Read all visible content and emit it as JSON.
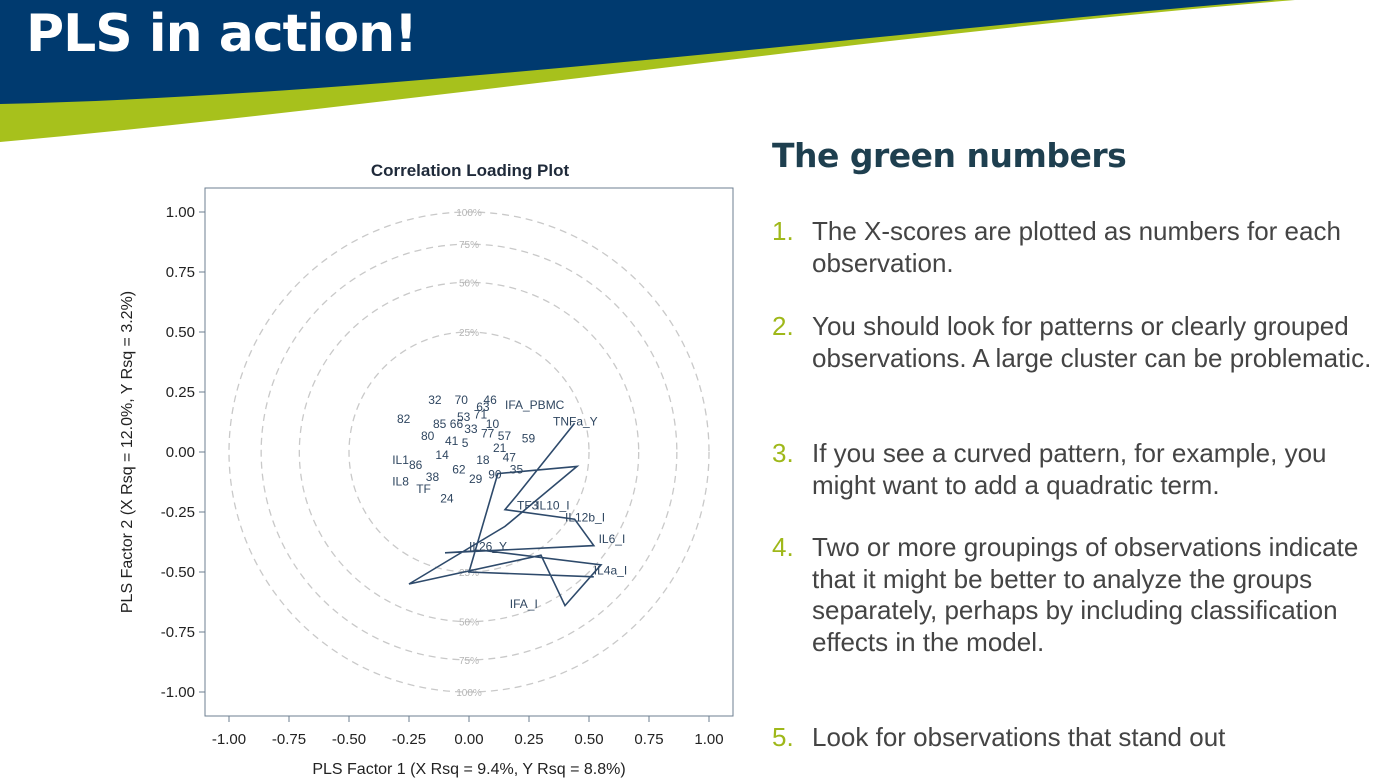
{
  "slide": {
    "title": "PLS in action!",
    "colors": {
      "banner": "#003a6f",
      "accent": "#a7c11c",
      "heading": "#1e3f4f",
      "number": "#9fb81a"
    }
  },
  "panel": {
    "heading": "The green numbers",
    "items": [
      {
        "num": "1.",
        "text": "The X-scores are plotted as numbers for each observation."
      },
      {
        "num": "2.",
        "text": "You should look for patterns or clearly grouped observations.  A large cluster can be problematic."
      },
      {
        "num": "3.",
        "text": "If you see a curved pattern, for example, you might want to add a quadratic term."
      },
      {
        "num": "4.",
        "text": "Two or more groupings of observations indicate that it might be better to analyze the groups separately, perhaps by including classification effects in the model."
      },
      {
        "num": "5.",
        "text": "Look for observations that stand out"
      }
    ]
  },
  "chart_data": {
    "type": "scatter",
    "title": "Correlation Loading Plot",
    "xlabel": "PLS Factor 1 (X Rsq = 9.4%, Y Rsq = 8.8%)",
    "ylabel": "PLS Factor 2 (X Rsq = 12.0%, Y Rsq = 3.2%)",
    "xlim": [
      -1.1,
      1.1
    ],
    "ylim": [
      -1.1,
      1.1
    ],
    "xticks": [
      "-1.00",
      "-0.75",
      "-0.50",
      "-0.25",
      "0.00",
      "0.25",
      "0.50",
      "0.75",
      "1.00"
    ],
    "yticks": [
      "1.00",
      "0.75",
      "0.50",
      "0.25",
      "0.00",
      "-0.25",
      "-0.50",
      "-0.75",
      "-1.00"
    ],
    "circles": [
      {
        "r": 1.0,
        "label": "100%"
      },
      {
        "r": 0.866,
        "label": "75%"
      },
      {
        "r": 0.707,
        "label": "50%"
      },
      {
        "r": 0.5,
        "label": "25%"
      }
    ],
    "loadings": [
      {
        "label": "IFA_PBMC",
        "x": 0.15,
        "y": 0.18
      },
      {
        "label": "TNFa_Y",
        "x": 0.35,
        "y": 0.11
      },
      {
        "label": "TF3",
        "x": 0.2,
        "y": -0.24
      },
      {
        "label": "IL10_I",
        "x": 0.28,
        "y": -0.24
      },
      {
        "label": "IL12b_I",
        "x": 0.4,
        "y": -0.29
      },
      {
        "label": "IL6_I",
        "x": 0.54,
        "y": -0.38
      },
      {
        "label": "IL4a_I",
        "x": 0.52,
        "y": -0.51
      },
      {
        "label": "IFA_I",
        "x": 0.17,
        "y": -0.65
      },
      {
        "label": "IL26_Y",
        "x": 0.0,
        "y": -0.41
      },
      {
        "label": "IL1",
        "x": -0.32,
        "y": -0.05
      },
      {
        "label": "IL8",
        "x": -0.32,
        "y": -0.14
      },
      {
        "label": "TF",
        "x": -0.22,
        "y": -0.17
      },
      {
        "label": "82",
        "x": -0.3,
        "y": 0.12
      },
      {
        "label": "32",
        "x": -0.17,
        "y": 0.2
      },
      {
        "label": "70",
        "x": -0.06,
        "y": 0.2
      },
      {
        "label": "46",
        "x": 0.06,
        "y": 0.2
      },
      {
        "label": "63",
        "x": 0.03,
        "y": 0.17
      },
      {
        "label": "85",
        "x": -0.15,
        "y": 0.1
      },
      {
        "label": "80",
        "x": -0.2,
        "y": 0.05
      },
      {
        "label": "59",
        "x": 0.22,
        "y": 0.04
      },
      {
        "label": "24",
        "x": -0.12,
        "y": -0.21
      },
      {
        "label": "35",
        "x": 0.17,
        "y": -0.09
      },
      {
        "label": "86",
        "x": -0.25,
        "y": -0.07
      },
      {
        "label": "10",
        "x": 0.07,
        "y": 0.1
      },
      {
        "label": "21",
        "x": 0.1,
        "y": 0.0
      },
      {
        "label": "53",
        "x": -0.05,
        "y": 0.13
      },
      {
        "label": "41",
        "x": -0.1,
        "y": 0.03
      },
      {
        "label": "18",
        "x": 0.03,
        "y": -0.05
      },
      {
        "label": "62",
        "x": -0.07,
        "y": -0.09
      },
      {
        "label": "57",
        "x": 0.12,
        "y": 0.05
      },
      {
        "label": "33",
        "x": -0.02,
        "y": 0.08
      },
      {
        "label": "77",
        "x": 0.05,
        "y": 0.06
      },
      {
        "label": "14",
        "x": -0.14,
        "y": -0.03
      },
      {
        "label": "29",
        "x": 0.0,
        "y": -0.13
      },
      {
        "label": "66",
        "x": -0.08,
        "y": 0.1
      },
      {
        "label": "90",
        "x": 0.08,
        "y": -0.11
      },
      {
        "label": "47",
        "x": 0.14,
        "y": -0.04
      },
      {
        "label": "5",
        "x": -0.03,
        "y": 0.02
      },
      {
        "label": "38",
        "x": -0.18,
        "y": -0.12
      },
      {
        "label": "71",
        "x": 0.02,
        "y": 0.14
      }
    ],
    "path": [
      [
        0.44,
        0.12
      ],
      [
        0.2,
        -0.18
      ],
      [
        0.15,
        -0.24
      ],
      [
        0.44,
        -0.28
      ],
      [
        0.52,
        -0.39
      ],
      [
        -0.1,
        -0.42
      ],
      [
        0.06,
        -0.41
      ],
      [
        0.55,
        -0.47
      ],
      [
        0.4,
        -0.64
      ],
      [
        0.3,
        -0.43
      ],
      [
        -0.25,
        -0.55
      ],
      [
        0.15,
        -0.31
      ],
      [
        0.45,
        -0.06
      ],
      [
        0.12,
        -0.09
      ],
      [
        0.0,
        -0.5
      ],
      [
        0.52,
        -0.52
      ]
    ]
  }
}
